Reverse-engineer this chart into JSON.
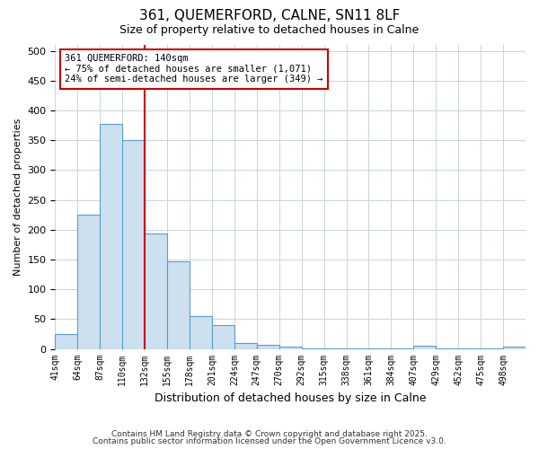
{
  "title1": "361, QUEMERFORD, CALNE, SN11 8LF",
  "title2": "Size of property relative to detached houses in Calne",
  "xlabel": "Distribution of detached houses by size in Calne",
  "ylabel": "Number of detached properties",
  "bin_labels": [
    "41sqm",
    "64sqm",
    "87sqm",
    "110sqm",
    "132sqm",
    "155sqm",
    "178sqm",
    "201sqm",
    "224sqm",
    "247sqm",
    "270sqm",
    "292sqm",
    "315sqm",
    "338sqm",
    "361sqm",
    "384sqm",
    "407sqm",
    "429sqm",
    "452sqm",
    "475sqm",
    "498sqm"
  ],
  "bar_heights": [
    25,
    225,
    378,
    350,
    193,
    147,
    55,
    40,
    10,
    7,
    4,
    1,
    1,
    1,
    1,
    1,
    5,
    1,
    1,
    1,
    4
  ],
  "bar_color": "#cce0f0",
  "bar_edgecolor": "#5b9bd5",
  "bar_linewidth": 0.8,
  "vline_bin_index": 4,
  "vline_color": "#cc0000",
  "vline_linewidth": 1.5,
  "ylim": [
    0,
    510
  ],
  "yticks": [
    0,
    50,
    100,
    150,
    200,
    250,
    300,
    350,
    400,
    450,
    500
  ],
  "grid_color": "#c8d4e0",
  "annotation_text": "361 QUEMERFORD: 140sqm\n← 75% of detached houses are smaller (1,071)\n24% of semi-detached houses are larger (349) →",
  "annotation_box_color": "white",
  "annotation_box_edgecolor": "#cc0000",
  "footer1": "Contains HM Land Registry data © Crown copyright and database right 2025.",
  "footer2": "Contains public sector information licensed under the Open Government Licence v3.0.",
  "background_color": "#ffffff",
  "title_fontsize": 11,
  "subtitle_fontsize": 9
}
